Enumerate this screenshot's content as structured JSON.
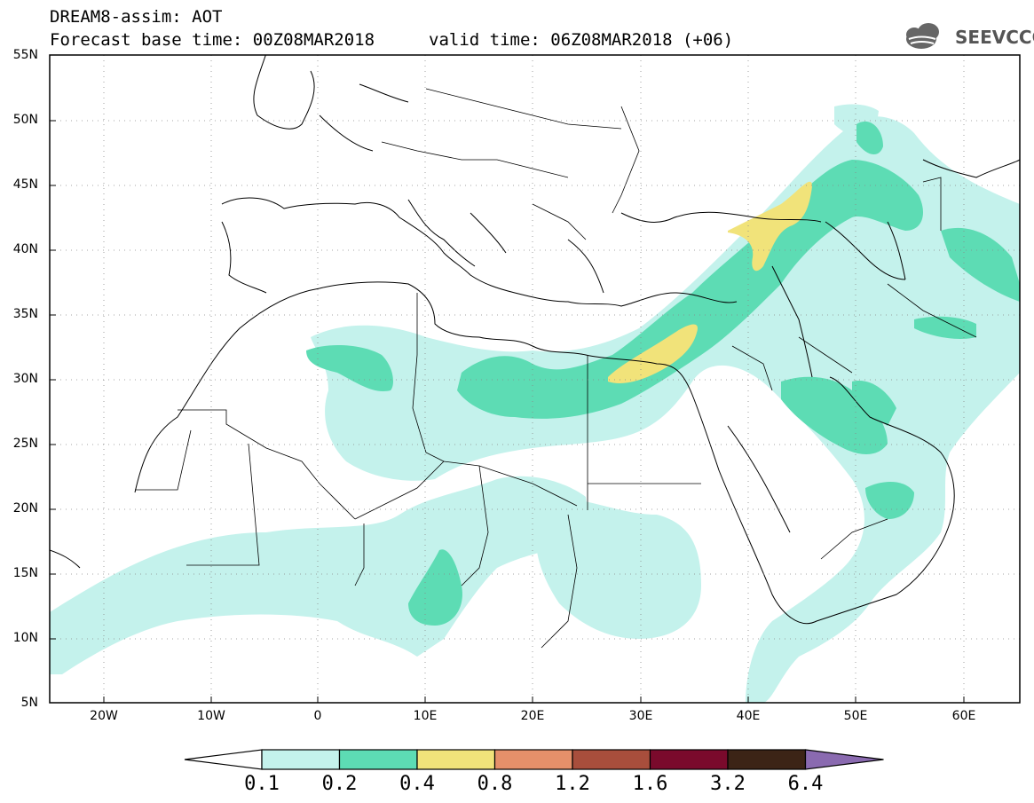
{
  "header": {
    "title": "DREAM8-assim: AOT",
    "base_time": "Forecast base time: 00Z08MAR2018",
    "valid_time": "valid time: 06Z08MAR2018 (+06)",
    "logo_text": "SEEVCCC"
  },
  "map": {
    "lon_range": [
      -25,
      65
    ],
    "lat_range": [
      5,
      55
    ],
    "lat_labels": [
      "55N",
      "50N",
      "45N",
      "40N",
      "35N",
      "30N",
      "25N",
      "20N",
      "15N",
      "10N",
      "5N"
    ],
    "lon_labels": [
      "20W",
      "10W",
      "0",
      "10E",
      "20E",
      "30E",
      "40E",
      "50E",
      "60E"
    ],
    "grid": "dotted"
  },
  "legend": {
    "levels": [
      "0.1",
      "0.2",
      "0.4",
      "0.8",
      "1.2",
      "1.6",
      "3.2",
      "6.4"
    ],
    "colors": [
      "#c4f2ec",
      "#5ddcb4",
      "#f1e37a",
      "#e5906a",
      "#a84e3c",
      "#7a0a2c",
      "#3c2416",
      "#8a6ab0"
    ]
  }
}
